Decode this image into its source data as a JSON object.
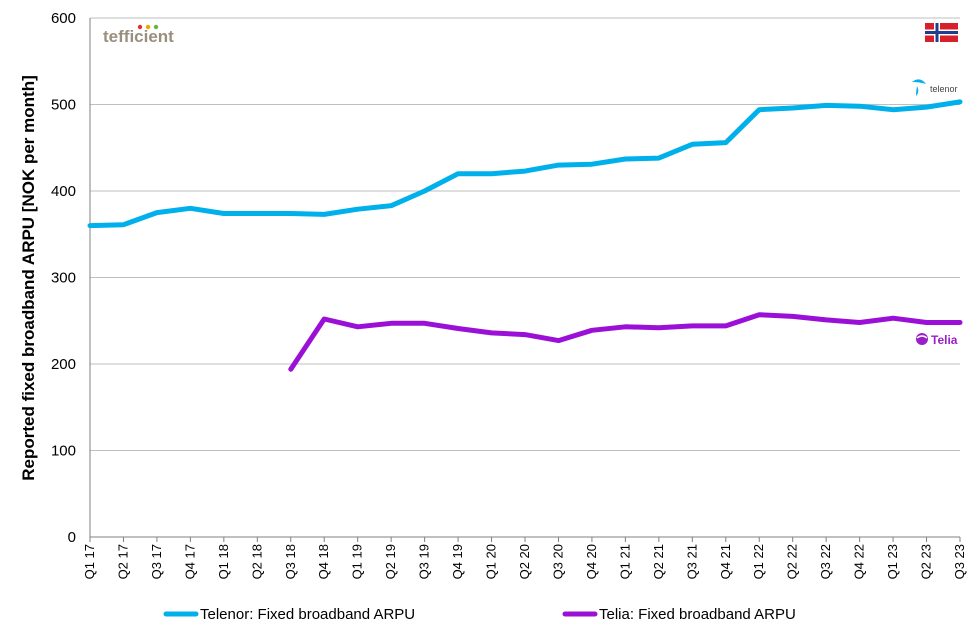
{
  "brand": {
    "name": "tefficient"
  },
  "logos": {
    "telenor": "telenor",
    "telia": "Telia",
    "flag": "norway-flag-icon"
  },
  "colors": {
    "telenor": "#00b0ea",
    "telia": "#9b10d6",
    "grid": "#bfbfbf",
    "brand_dots": [
      "#e2312d",
      "#f0a400",
      "#6cb33f"
    ]
  },
  "chart_data": {
    "type": "line",
    "title": "",
    "xlabel": "",
    "ylabel": "Reported fixed broadband ARPU [NOK per month]",
    "ylim": [
      0,
      600
    ],
    "yticks": [
      0,
      100,
      200,
      300,
      400,
      500,
      600
    ],
    "grid": true,
    "legend": "bottom",
    "categories": [
      "Q1 17",
      "Q2 17",
      "Q3 17",
      "Q4 17",
      "Q1 18",
      "Q2 18",
      "Q3 18",
      "Q4 18",
      "Q1 19",
      "Q2 19",
      "Q3 19",
      "Q4 19",
      "Q1 20",
      "Q2 20",
      "Q3 20",
      "Q4 20",
      "Q1 21",
      "Q2 21",
      "Q3 21",
      "Q4 21",
      "Q1 22",
      "Q2 22",
      "Q3 22",
      "Q4 22",
      "Q1 23",
      "Q2 23",
      "Q3 23"
    ],
    "series": [
      {
        "name": "Telenor: Fixed broadband ARPU",
        "color": "#00b0ea",
        "values": [
          360,
          361,
          375,
          380,
          374,
          374,
          374,
          373,
          379,
          383,
          400,
          420,
          420,
          423,
          430,
          431,
          437,
          438,
          454,
          456,
          494,
          496,
          499,
          498,
          494,
          497,
          503
        ]
      },
      {
        "name": "Telia: Fixed broadband ARPU",
        "color": "#9b10d6",
        "values": [
          null,
          null,
          null,
          null,
          null,
          null,
          194,
          252,
          243,
          247,
          247,
          241,
          236,
          234,
          227,
          239,
          243,
          242,
          244,
          244,
          257,
          255,
          251,
          248,
          253,
          248,
          248
        ]
      }
    ]
  }
}
